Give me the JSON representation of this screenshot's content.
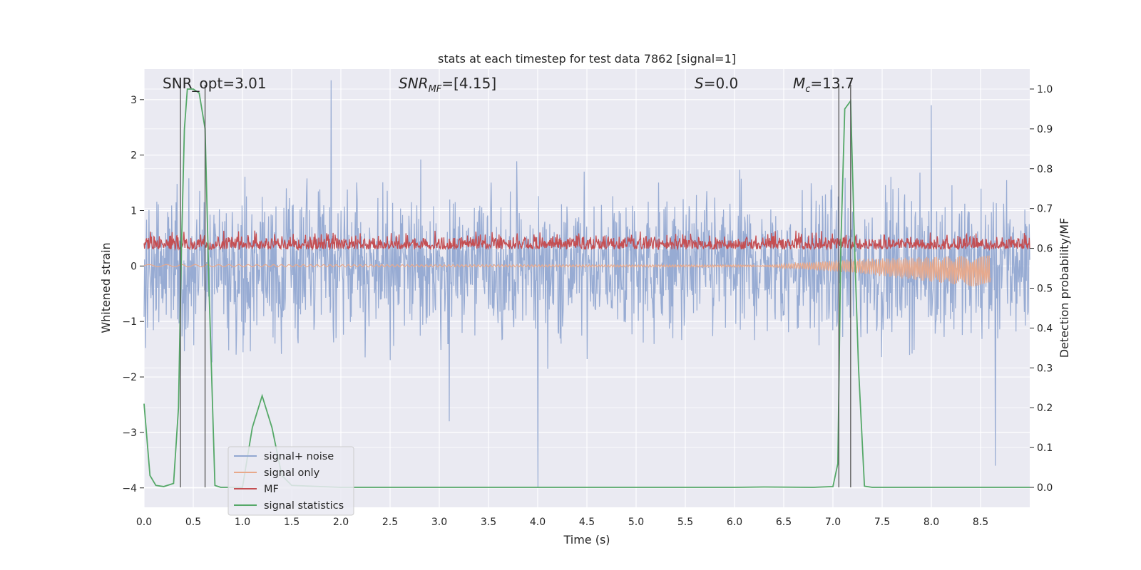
{
  "chart_data": {
    "type": "line",
    "title": "stats at each timestep for test data 7862 [signal=1]",
    "xlabel": "Time (s)",
    "ylabel": "Whitened strain",
    "ylabel_right": "Detection probability/MF",
    "xlim": [
      0.0,
      9.0
    ],
    "ylim": [
      -4.35,
      3.55
    ],
    "ylim_right": [
      -0.05,
      1.05
    ],
    "xticks": [
      "0.0",
      "0.5",
      "1.0",
      "1.5",
      "2.0",
      "2.5",
      "3.0",
      "3.5",
      "4.0",
      "4.5",
      "5.0",
      "5.5",
      "6.0",
      "6.5",
      "7.0",
      "7.5",
      "8.0",
      "8.5"
    ],
    "yticks": [
      "3",
      "2",
      "1",
      "0",
      "−1",
      "−2",
      "−3",
      "−4"
    ],
    "yticks_right": [
      "1.0",
      "0.9",
      "0.8",
      "0.7",
      "0.6",
      "0.5",
      "0.4",
      "0.3",
      "0.2",
      "0.1",
      "0.0"
    ],
    "grid": true,
    "legend_position": "lower-left",
    "annotations": {
      "snr_opt": "SNR_opt=3.01",
      "snr_mf_sym": "SNR",
      "snr_mf_sub": "MF",
      "snr_mf_val": "=[4.15]",
      "s_sym": "S",
      "s_val": "=0.0",
      "mc_sym": "M",
      "mc_sub": "c",
      "mc_val": "=13.7"
    },
    "vertical_lines_x": [
      0.37,
      0.62,
      7.06,
      7.18
    ],
    "series": [
      {
        "name": "signal+ noise",
        "color": "#92a8d1",
        "axis": "left",
        "amplitude_approx": 2.3,
        "spikes_approx": [
          [
            1.9,
            3.35
          ],
          [
            3.1,
            -2.8
          ],
          [
            4.0,
            -4.0
          ],
          [
            8.0,
            2.9
          ],
          [
            8.65,
            -3.6
          ]
        ]
      },
      {
        "name": "signal only",
        "color": "#e8a98b",
        "axis": "left",
        "approx": [
          [
            0.0,
            0.02
          ],
          [
            6.5,
            0.0
          ],
          [
            7.2,
            0.0
          ],
          [
            8.6,
            -0.35
          ]
        ]
      },
      {
        "name": "MF",
        "color": "#c44e52",
        "axis": "left",
        "range_approx": [
          0.0,
          0.9
        ]
      },
      {
        "name": "signal statistics",
        "color": "#55a868",
        "axis": "right",
        "x": [
          0.0,
          0.06,
          0.12,
          0.2,
          0.3,
          0.35,
          0.38,
          0.41,
          0.44,
          0.5,
          0.56,
          0.62,
          0.66,
          0.72,
          0.78,
          0.86,
          1.0,
          1.1,
          1.2,
          1.3,
          1.4,
          1.5,
          2.0,
          3.0,
          4.0,
          5.0,
          6.0,
          6.3,
          6.8,
          7.0,
          7.05,
          7.08,
          7.12,
          7.18,
          7.22,
          7.26,
          7.32,
          7.4,
          8.0,
          9.0
        ],
        "y": [
          0.21,
          0.03,
          0.005,
          0.002,
          0.01,
          0.2,
          0.6,
          0.9,
          1.0,
          1.0,
          0.99,
          0.9,
          0.5,
          0.005,
          0.0,
          0.0,
          0.0,
          0.15,
          0.23,
          0.15,
          0.03,
          0.005,
          0.0,
          0.0,
          0.0,
          0.0,
          0.0,
          0.001,
          0.0,
          0.002,
          0.06,
          0.6,
          0.95,
          0.97,
          0.6,
          0.3,
          0.003,
          0.0,
          0.0,
          0.0
        ]
      }
    ]
  }
}
